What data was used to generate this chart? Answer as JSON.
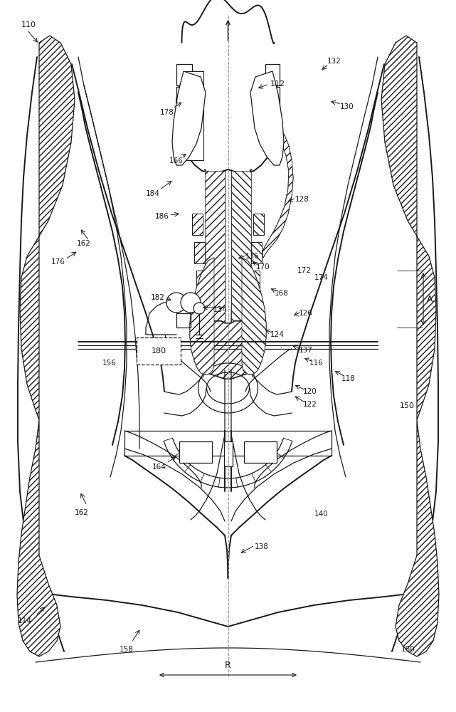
{
  "bg_color": "#ffffff",
  "lc": "#1a1a1a",
  "fig_width": 6.41,
  "fig_height": 10.0,
  "dpi": 100
}
